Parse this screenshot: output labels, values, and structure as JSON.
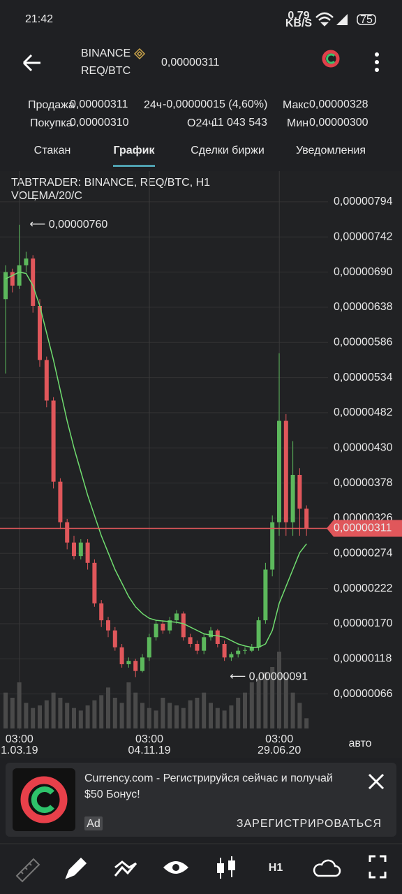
{
  "status_bar": {
    "time": "21:42",
    "speed": "0.79",
    "speed_unit": "KB/S",
    "battery": "75"
  },
  "header": {
    "exchange": "BINANCE",
    "pair": "REQ/BTC",
    "price": "0,00000311"
  },
  "stats": {
    "sell_label": "Продажа",
    "sell": "0,00000311",
    "change_label": "24ч",
    "change": "-0,00000015 (4,60%)",
    "max_label": "Макс",
    "max": "0,00000328",
    "buy_label": "Покупка",
    "buy": "0,00000310",
    "volume_label": "O24ч",
    "volume": "11 043 543",
    "min_label": "Мин",
    "min": "0,00000300"
  },
  "tabs": [
    "Стакан",
    "График",
    "Сделки биржи",
    "Уведомления"
  ],
  "chart_data": {
    "type": "candlestick",
    "title": "TABTRADER: BINANCE, REQ/BTC, H1",
    "indicator_vol": "VOL, ",
    "indicator_ema": "EMA/20/C",
    "ylim": [
      1.5e-07,
      8.29e-06
    ],
    "yticks": [
      {
        "value": 6.6e-07,
        "label": "0,00000066"
      },
      {
        "value": 1.18e-06,
        "label": "0,00000118"
      },
      {
        "value": 1.7e-06,
        "label": "0,00000170"
      },
      {
        "value": 2.22e-06,
        "label": "0,00000222"
      },
      {
        "value": 2.74e-06,
        "label": "0,00000274"
      },
      {
        "value": 3.26e-06,
        "label": "0,00000326"
      },
      {
        "value": 3.78e-06,
        "label": "0,00000378"
      },
      {
        "value": 4.3e-06,
        "label": "0,00000430"
      },
      {
        "value": 4.82e-06,
        "label": "0,00000482"
      },
      {
        "value": 5.34e-06,
        "label": "0,00000534"
      },
      {
        "value": 5.86e-06,
        "label": "0,00000586"
      },
      {
        "value": 6.38e-06,
        "label": "0,00000638"
      },
      {
        "value": 6.9e-06,
        "label": "0,00000690"
      },
      {
        "value": 7.42e-06,
        "label": "0,00000742"
      },
      {
        "value": 7.94e-06,
        "label": "0,00000794"
      }
    ],
    "x_labels": [
      {
        "time": "03:00",
        "date": "1.03.19",
        "index": 1
      },
      {
        "time": "03:00",
        "date": "04.11.19",
        "index": 20
      },
      {
        "time": "03:00",
        "date": "29.06.20",
        "index": 39
      }
    ],
    "open": [
      6.5e-06,
      6.9e-06,
      6.7e-06,
      7e-06,
      7.1e-06,
      6.4e-06,
      5.6e-06,
      5e-06,
      3.8e-06,
      3.2e-06,
      2.9e-06,
      2.7e-06,
      2.9e-06,
      2.6e-06,
      2e-06,
      1.75e-06,
      1.6e-06,
      1.35e-06,
      1.1e-06,
      1.15e-06,
      1e-06,
      1.2e-06,
      1.5e-06,
      1.7e-06,
      1.6e-06,
      1.75e-06,
      1.85e-06,
      1.5e-06,
      1.4e-06,
      1.3e-06,
      1.5e-06,
      1.6e-06,
      1.4e-06,
      1.2e-06,
      1.25e-06,
      1.3e-06,
      1.3e-06,
      1.35e-06,
      1.75e-06,
      2.5e-06,
      3.2e-06,
      4.7e-06,
      3.2e-06,
      3.9e-06,
      3.4e-06
    ],
    "high": [
      7e-06,
      6.95e-06,
      7.6e-06,
      7.2e-06,
      7.15e-06,
      6.5e-06,
      5.65e-06,
      5.05e-06,
      3.85e-06,
      3.25e-06,
      3e-06,
      2.95e-06,
      2.95e-06,
      2.65e-06,
      2.05e-06,
      1.8e-06,
      1.65e-06,
      1.4e-06,
      1.2e-06,
      1.18e-06,
      1.25e-06,
      1.55e-06,
      1.75e-06,
      1.75e-06,
      1.8e-06,
      1.9e-06,
      1.88e-06,
      1.55e-06,
      1.45e-06,
      1.55e-06,
      1.65e-06,
      1.62e-06,
      1.45e-06,
      1.28e-06,
      1.35e-06,
      1.35e-06,
      1.4e-06,
      1.8e-06,
      2.6e-06,
      3.3e-06,
      5.7e-06,
      4.8e-06,
      4.4e-06,
      4e-06,
      3.45e-06
    ],
    "low": [
      5.4e-06,
      6.6e-06,
      6.65e-06,
      6.9e-06,
      6.3e-06,
      5.5e-06,
      4.9e-06,
      3.7e-06,
      3.1e-06,
      2.8e-06,
      2.65e-06,
      2.65e-06,
      2.5e-06,
      1.95e-06,
      1.65e-06,
      1.5e-06,
      1.3e-06,
      1.05e-06,
      1.05e-06,
      9.1e-07,
      9.8e-07,
      1.15e-06,
      1.45e-06,
      1.55e-06,
      1.55e-06,
      1.7e-06,
      1.45e-06,
      1.35e-06,
      1.25e-06,
      1.25e-06,
      1.45e-06,
      1.35e-06,
      1.15e-06,
      1.15e-06,
      1.2e-06,
      1.25e-06,
      1.28e-06,
      1.3e-06,
      1.7e-06,
      2.4e-06,
      3e-06,
      3e-06,
      3e-06,
      3e-06,
      3e-06
    ],
    "close": [
      6.9e-06,
      6.7e-06,
      7e-06,
      7.1e-06,
      6.4e-06,
      5.6e-06,
      5e-06,
      3.8e-06,
      3.2e-06,
      2.9e-06,
      2.7e-06,
      2.9e-06,
      2.6e-06,
      2e-06,
      1.75e-06,
      1.6e-06,
      1.35e-06,
      1.1e-06,
      1.15e-06,
      1e-06,
      1.2e-06,
      1.5e-06,
      1.7e-06,
      1.6e-06,
      1.75e-06,
      1.85e-06,
      1.5e-06,
      1.4e-06,
      1.3e-06,
      1.5e-06,
      1.6e-06,
      1.4e-06,
      1.2e-06,
      1.25e-06,
      1.3e-06,
      1.31e-06,
      1.35e-06,
      1.75e-06,
      2.5e-06,
      3.2e-06,
      4.7e-06,
      3.2e-06,
      3.9e-06,
      3.4e-06,
      3.11e-06
    ],
    "ema": [
      6.8e-06,
      6.85e-06,
      6.9e-06,
      6.88e-06,
      6.7e-06,
      6.4e-06,
      6e-06,
      5.6e-06,
      5.15e-06,
      4.7e-06,
      4.3e-06,
      3.95e-06,
      3.6e-06,
      3.3e-06,
      3e-06,
      2.75e-06,
      2.5e-06,
      2.3e-06,
      2.1e-06,
      1.95e-06,
      1.85e-06,
      1.78e-06,
      1.75e-06,
      1.74e-06,
      1.73e-06,
      1.72e-06,
      1.7e-06,
      1.65e-06,
      1.6e-06,
      1.55e-06,
      1.53e-06,
      1.52e-06,
      1.5e-06,
      1.45e-06,
      1.4e-06,
      1.37e-06,
      1.35e-06,
      1.35e-06,
      1.4e-06,
      1.6e-06,
      2e-06,
      2.25e-06,
      2.5e-06,
      2.75e-06,
      2.88e-06
    ],
    "volume": [
      70,
      60,
      90,
      50,
      40,
      45,
      55,
      70,
      60,
      50,
      40,
      35,
      45,
      55,
      65,
      80,
      60,
      50,
      90,
      70,
      50,
      40,
      35,
      60,
      50,
      45,
      40,
      55,
      60,
      70,
      50,
      40,
      35,
      45,
      60,
      70,
      90,
      100,
      110,
      120,
      150,
      100,
      70,
      50,
      20
    ],
    "up_color": "#5cb85c",
    "down_color": "#e0575b",
    "ema_color": "#6fdc6f",
    "volume_color": "#4a4a4a",
    "annotations": [
      {
        "text": "⟵ 0,00000760",
        "value": 7.6e-06,
        "index": 3
      },
      {
        "text": "⟵ 0,00000091",
        "value": 9.1e-07,
        "index": 19
      }
    ],
    "last_price": {
      "value": 3.11e-06,
      "label": "0,00000311"
    },
    "scale_mode": "авто"
  },
  "ad": {
    "title_lines": [
      "Currency.com - Регистрируйся сейчас и получай",
      "$50 Бонус!"
    ],
    "badge": "Ad",
    "button": "ЗАРЕГИСТРИРОВАТЬСЯ"
  },
  "toolbar": {
    "timeframe": "H1"
  }
}
